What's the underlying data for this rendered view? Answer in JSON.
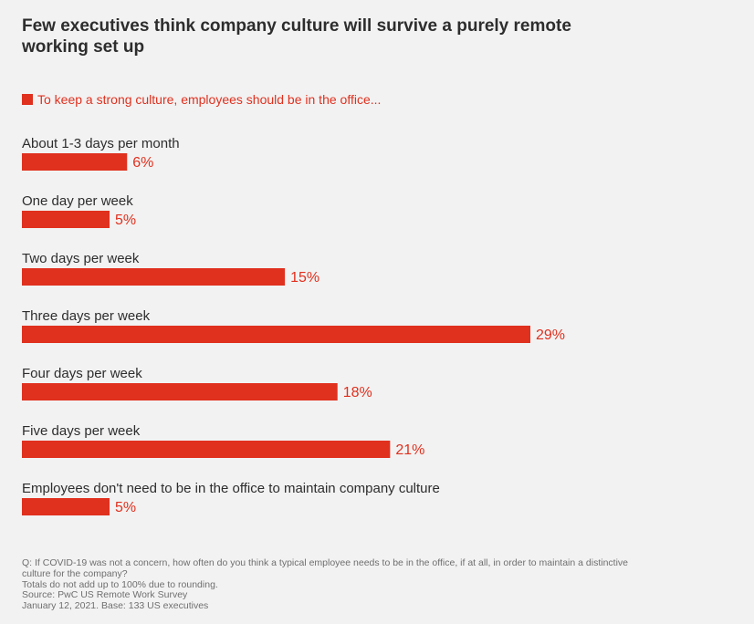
{
  "chart_data": {
    "type": "bar",
    "orientation": "horizontal",
    "title": "Few executives think company culture will survive a purely remote working set up",
    "series": [
      {
        "name": "To keep a strong culture, employees should be in the office...",
        "values": [
          6,
          5,
          15,
          29,
          18,
          21,
          5
        ],
        "color": "#e0301e"
      }
    ],
    "categories": [
      "About 1-3 days per month",
      "One day per week",
      "Two days per week",
      "Three days per week",
      "Four days per week",
      "Five days per week",
      "Employees don't need to be in the office to maintain company culture"
    ],
    "data_labels": [
      "6%",
      "5%",
      "15%",
      "29%",
      "18%",
      "21%",
      "5%"
    ],
    "value_unit": "%",
    "xlim": [
      0,
      29
    ],
    "grid": false,
    "legend_position": "top-left"
  },
  "notes": {
    "question": "Q: If COVID-19 was not a concern, how often do you think a typical employee needs to be in the office, if at all, in order to maintain a distinctive culture for the company?",
    "rounding": "Totals do not add up to 100% due to rounding.",
    "source": "Source: PwC US Remote Work Survey",
    "date_base": "January 12, 2021. Base: 133 US executives"
  },
  "colors": {
    "accent": "#e0301e",
    "text": "#2d2d2d",
    "muted": "#6f6f6f",
    "background": "#f2f2f2"
  }
}
